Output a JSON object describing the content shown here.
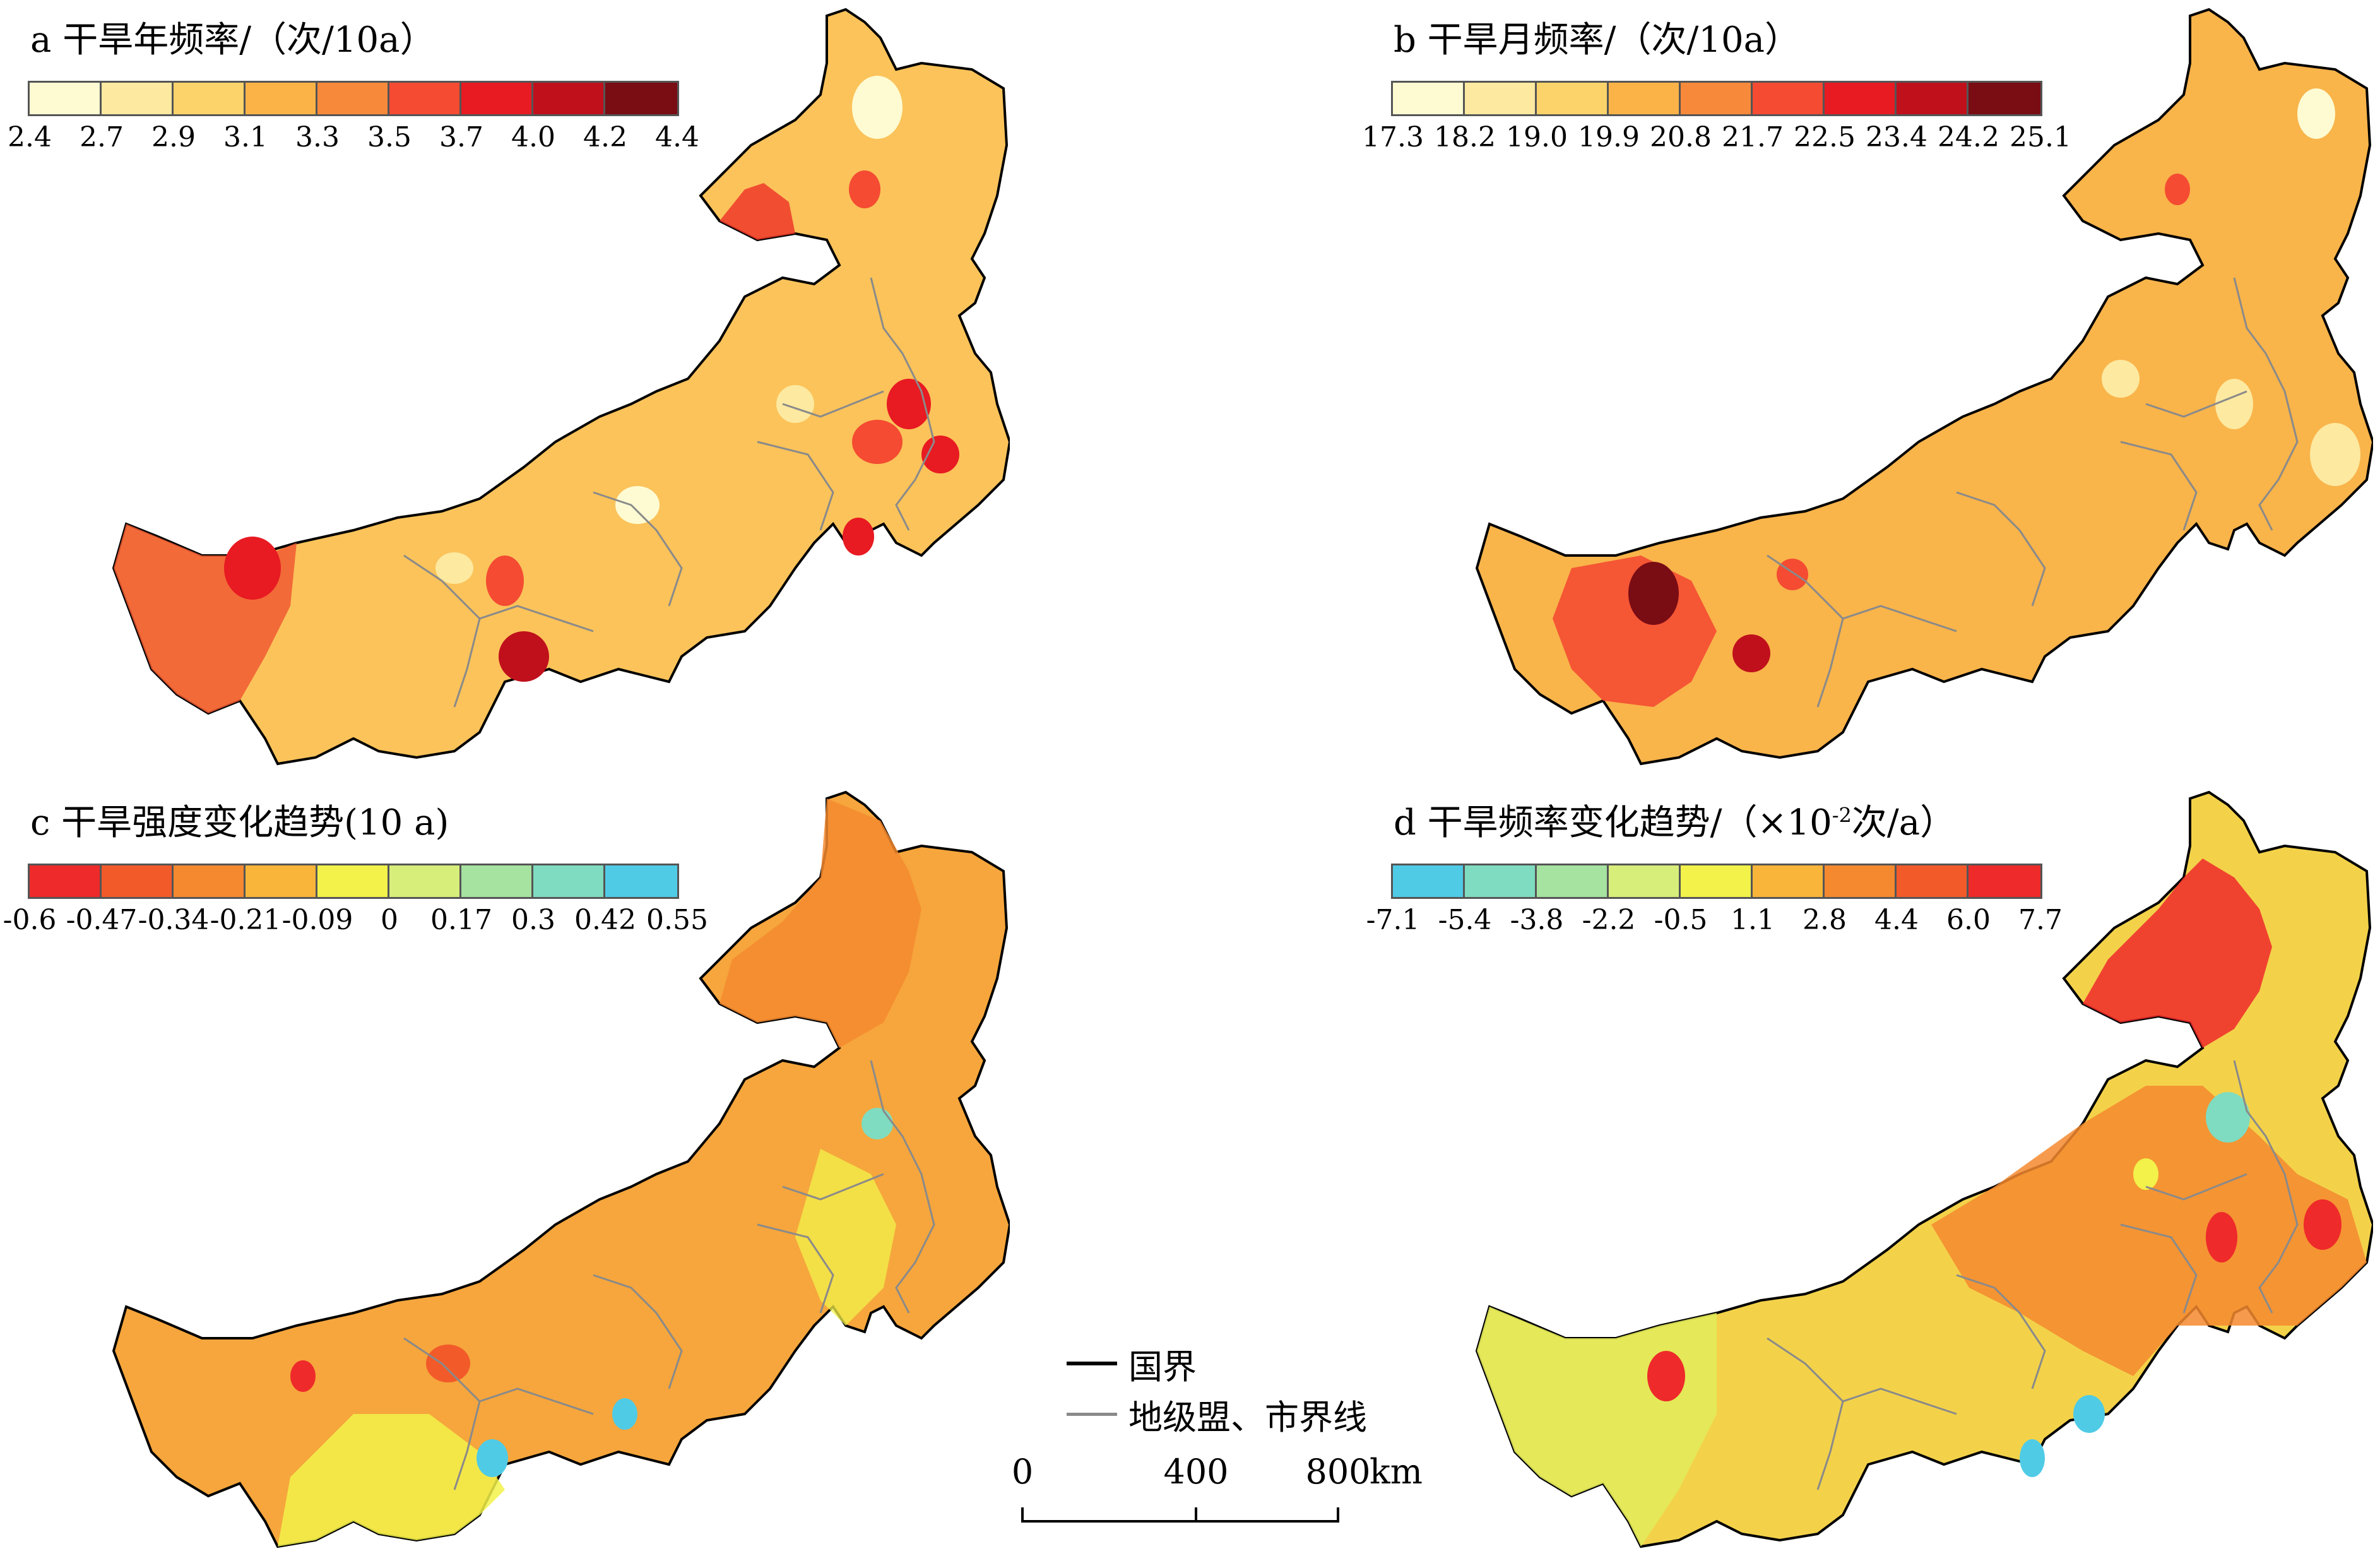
{
  "panels": [
    {
      "id": "a",
      "title": "a 干旱年频率/（次/10a）",
      "legend_colors": [
        "#fefbd2",
        "#fde9a0",
        "#fcd36a",
        "#fbb347",
        "#f78a3a",
        "#f44b32",
        "#e81a22",
        "#c0101c",
        "#7a0c14"
      ],
      "legend_labels": [
        "2.4",
        "2.7",
        "2.9",
        "3.1",
        "3.3",
        "3.5",
        "3.7",
        "4.0",
        "4.2",
        "4.4"
      ]
    },
    {
      "id": "b",
      "title": "b 干旱月频率/（次/10a）",
      "legend_colors": [
        "#fefbd2",
        "#fde9a0",
        "#fcd36a",
        "#fbb347",
        "#f78a3a",
        "#f44b32",
        "#e81a22",
        "#c0101c",
        "#7a0c14"
      ],
      "legend_labels": [
        "17.3",
        "18.2",
        "19.0",
        "19.9",
        "20.8",
        "21.7",
        "22.5",
        "23.4",
        "24.2",
        "25.1"
      ]
    },
    {
      "id": "c",
      "title": "c 干旱强度变化趋势(10 a)",
      "legend_colors": [
        "#ee2a2a",
        "#f25a2a",
        "#f5892f",
        "#f9b53a",
        "#f2f24a",
        "#d7ee7a",
        "#a6e2a0",
        "#7fdcc0",
        "#4fcbe6"
      ],
      "legend_labels": [
        "-0.6",
        "-0.47",
        "-0.34",
        "-0.21",
        "-0.09",
        "0",
        "0.17",
        "0.3",
        "0.42",
        "0.55"
      ]
    },
    {
      "id": "d",
      "title_main": "d 干旱频率变化趋势/（×10",
      "title_sup": "-2",
      "title_tail": "次/a）",
      "legend_colors": [
        "#4fcbe6",
        "#7fdcc0",
        "#a6e2a0",
        "#d7ee7a",
        "#f2f24a",
        "#f9b53a",
        "#f5892f",
        "#f25a2a",
        "#ee2a2a"
      ],
      "legend_labels": [
        "-7.1",
        "-5.4",
        "-3.8",
        "-2.2",
        "-0.5",
        "1.1",
        "2.8",
        "4.4",
        "6.0",
        "7.7"
      ]
    }
  ],
  "map_legend": {
    "national_border": "国界",
    "league_city_border": "地级盟、市界线"
  },
  "scale_bar": {
    "labels": [
      "0",
      "400",
      "800"
    ],
    "unit": "km"
  },
  "map_fill_colors": {
    "a": "#fbc35a",
    "b": "#f9b44a",
    "c": "#f6a63c",
    "d": "#f3d24a"
  }
}
